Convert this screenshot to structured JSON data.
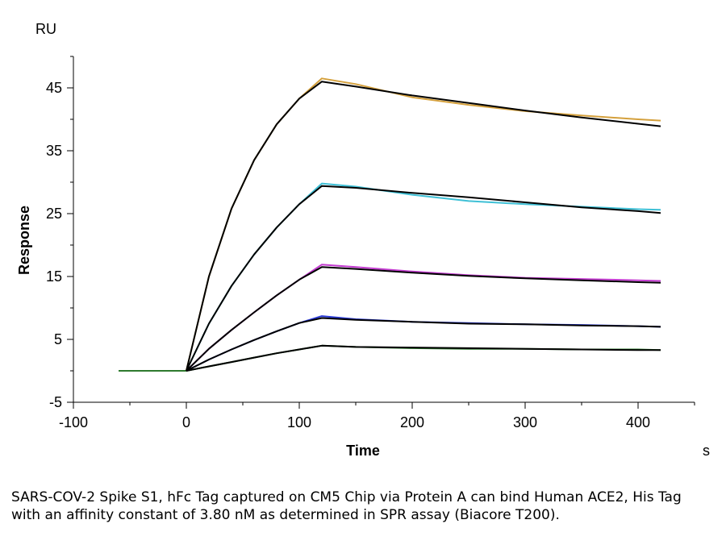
{
  "chart_data": {
    "type": "line",
    "title": "",
    "xlabel": "Time",
    "x_unit": "s",
    "ylabel": "Response",
    "y_unit": "RU",
    "xlim": [
      -100,
      450
    ],
    "ylim": [
      -5,
      50
    ],
    "x_ticks": [
      -100,
      0,
      100,
      200,
      300,
      400
    ],
    "y_ticks": [
      -5,
      5,
      15,
      25,
      35,
      45
    ],
    "grid": false,
    "legend": "none",
    "series": [
      {
        "color": "#d4a03c",
        "fit_color": "#000000",
        "x": [
          -60,
          0,
          20,
          40,
          60,
          80,
          100,
          120,
          150,
          200,
          250,
          300,
          350,
          400,
          420
        ],
        "y": [
          0,
          0,
          15.0,
          25.8,
          33.5,
          39.2,
          43.3,
          46.5,
          45.6,
          43.5,
          42.3,
          41.3,
          40.6,
          40.0,
          39.8
        ]
      },
      {
        "color": "#3fc0d6",
        "fit_color": "#000000",
        "x": [
          -60,
          0,
          20,
          40,
          60,
          80,
          100,
          120,
          150,
          200,
          250,
          300,
          350,
          400,
          420
        ],
        "y": [
          0,
          0,
          7.5,
          13.5,
          18.5,
          22.8,
          26.5,
          29.8,
          29.3,
          28.0,
          27.0,
          26.5,
          26.1,
          25.7,
          25.6
        ]
      },
      {
        "color": "#c33bd0",
        "fit_color": "#000000",
        "x": [
          -60,
          0,
          20,
          40,
          60,
          80,
          100,
          120,
          150,
          200,
          250,
          300,
          350,
          400,
          420
        ],
        "y": [
          0,
          0,
          3.5,
          6.5,
          9.3,
          12.0,
          14.5,
          16.9,
          16.5,
          15.8,
          15.2,
          14.8,
          14.6,
          14.4,
          14.3
        ]
      },
      {
        "color": "#2a3ad6",
        "fit_color": "#000000",
        "x": [
          -60,
          0,
          20,
          40,
          60,
          80,
          100,
          120,
          150,
          200,
          250,
          300,
          350,
          400,
          420
        ],
        "y": [
          0,
          0,
          1.8,
          3.4,
          4.9,
          6.3,
          7.6,
          8.7,
          8.2,
          7.8,
          7.6,
          7.4,
          7.3,
          7.1,
          7.0
        ]
      },
      {
        "color": "#2e7a2e",
        "fit_color": "#000000",
        "x": [
          -60,
          0,
          20,
          40,
          60,
          80,
          100,
          120,
          150,
          200,
          250,
          300,
          350,
          400,
          420
        ],
        "y": [
          0,
          0,
          0.7,
          1.4,
          2.1,
          2.8,
          3.4,
          4.0,
          3.8,
          3.6,
          3.5,
          3.5,
          3.4,
          3.4,
          3.3
        ]
      }
    ],
    "fit_series": [
      {
        "x": [
          0,
          20,
          40,
          60,
          80,
          100,
          120,
          150,
          200,
          250,
          300,
          350,
          400,
          420
        ],
        "y": [
          0,
          15.0,
          25.8,
          33.5,
          39.2,
          43.3,
          46.0,
          45.2,
          43.8,
          42.6,
          41.4,
          40.3,
          39.3,
          38.9
        ]
      },
      {
        "x": [
          0,
          20,
          40,
          60,
          80,
          100,
          120,
          150,
          200,
          250,
          300,
          350,
          400,
          420
        ],
        "y": [
          0,
          7.5,
          13.5,
          18.5,
          22.8,
          26.5,
          29.4,
          29.1,
          28.3,
          27.6,
          26.8,
          26.0,
          25.4,
          25.1
        ]
      },
      {
        "x": [
          0,
          20,
          40,
          60,
          80,
          100,
          120,
          150,
          200,
          250,
          300,
          350,
          400,
          420
        ],
        "y": [
          0,
          3.5,
          6.5,
          9.3,
          12.0,
          14.5,
          16.5,
          16.2,
          15.6,
          15.1,
          14.7,
          14.4,
          14.1,
          14.0
        ]
      },
      {
        "x": [
          0,
          20,
          40,
          60,
          80,
          100,
          120,
          150,
          200,
          250,
          300,
          350,
          400,
          420
        ],
        "y": [
          0,
          1.8,
          3.4,
          4.9,
          6.3,
          7.6,
          8.4,
          8.1,
          7.8,
          7.5,
          7.4,
          7.2,
          7.1,
          7.0
        ]
      },
      {
        "x": [
          0,
          20,
          40,
          60,
          80,
          100,
          120,
          150,
          200,
          250,
          300,
          350,
          400,
          420
        ],
        "y": [
          0,
          0.7,
          1.4,
          2.1,
          2.8,
          3.4,
          4.0,
          3.8,
          3.7,
          3.6,
          3.5,
          3.4,
          3.3,
          3.3
        ]
      }
    ]
  },
  "caption": "SARS-COV-2 Spike S1, hFc Tag captured on CM5 Chip via Protein A can bind Human ACE2, His Tag with an affinity constant of 3.80 nM as determined in SPR assay (Biacore T200)."
}
